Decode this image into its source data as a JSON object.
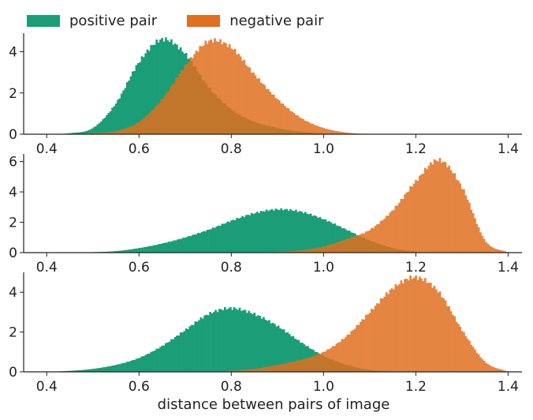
{
  "legend": {
    "items": [
      {
        "label": "positive pair",
        "color": "#1b9e77"
      },
      {
        "label": "negative pair",
        "color": "#e07020"
      }
    ]
  },
  "xlabel": "distance between pairs of image",
  "chart_data": [
    {
      "type": "histogram",
      "xlim": [
        0.35,
        1.43
      ],
      "ylim": [
        0,
        4.9
      ],
      "xticks": [
        0.4,
        0.6,
        0.8,
        1.0,
        1.2,
        1.4
      ],
      "xtick_labels": [
        "0.4",
        "0.6",
        "0.8",
        "1.0",
        "1.2",
        "1.4"
      ],
      "yticks": [
        0,
        2,
        4
      ],
      "ytick_labels": [
        "0",
        "2",
        "4"
      ],
      "series": [
        {
          "name": "positive pair",
          "color": "#1b9e77",
          "x": [
            0.4,
            0.45,
            0.5,
            0.55,
            0.6,
            0.65,
            0.7,
            0.75,
            0.8,
            0.85,
            0.9,
            0.95,
            1.0,
            1.05,
            1.1
          ],
          "y": [
            0.0,
            0.05,
            0.3,
            1.5,
            3.5,
            4.6,
            3.9,
            2.3,
            1.2,
            0.6,
            0.3,
            0.12,
            0.04,
            0.01,
            0.0
          ]
        },
        {
          "name": "negative pair",
          "color": "#e07020",
          "x": [
            0.45,
            0.5,
            0.55,
            0.6,
            0.65,
            0.7,
            0.75,
            0.8,
            0.85,
            0.9,
            0.95,
            1.0,
            1.05,
            1.1
          ],
          "y": [
            0.0,
            0.05,
            0.15,
            0.6,
            1.7,
            3.3,
            4.5,
            4.2,
            2.9,
            1.7,
            0.8,
            0.3,
            0.08,
            0.0
          ]
        }
      ]
    },
    {
      "type": "histogram",
      "xlim": [
        0.35,
        1.43
      ],
      "ylim": [
        0,
        6.5
      ],
      "xticks": [
        0.4,
        0.6,
        0.8,
        1.0,
        1.2,
        1.4
      ],
      "xtick_labels": [
        "0.4",
        "0.6",
        "0.8",
        "1.0",
        "1.2",
        "1.4"
      ],
      "yticks": [
        0,
        2,
        4,
        6
      ],
      "ytick_labels": [
        "0",
        "2",
        "4",
        "6"
      ],
      "series": [
        {
          "name": "positive pair",
          "color": "#1b9e77",
          "x": [
            0.45,
            0.5,
            0.55,
            0.6,
            0.65,
            0.7,
            0.75,
            0.8,
            0.85,
            0.9,
            0.95,
            1.0,
            1.05,
            1.1,
            1.15,
            1.2
          ],
          "y": [
            0.0,
            0.03,
            0.1,
            0.3,
            0.6,
            1.0,
            1.5,
            2.1,
            2.6,
            2.85,
            2.7,
            2.2,
            1.5,
            0.8,
            0.3,
            0.05
          ]
        },
        {
          "name": "negative pair",
          "color": "#e07020",
          "x": [
            0.85,
            0.9,
            0.95,
            1.0,
            1.05,
            1.1,
            1.15,
            1.2,
            1.25,
            1.3,
            1.35,
            1.4
          ],
          "y": [
            0.0,
            0.05,
            0.15,
            0.4,
            0.9,
            1.5,
            2.8,
            4.7,
            6.1,
            4.3,
            0.8,
            0.0
          ]
        }
      ]
    },
    {
      "type": "histogram",
      "xlim": [
        0.35,
        1.43
      ],
      "ylim": [
        0,
        5.0
      ],
      "xticks": [
        0.4,
        0.6,
        0.8,
        1.0,
        1.2,
        1.4
      ],
      "xtick_labels": [
        "0.4",
        "0.6",
        "0.8",
        "1.0",
        "1.2",
        "1.4"
      ],
      "yticks": [
        0,
        2,
        4
      ],
      "ytick_labels": [
        "0",
        "2",
        "4"
      ],
      "series": [
        {
          "name": "positive pair",
          "color": "#1b9e77",
          "x": [
            0.4,
            0.45,
            0.5,
            0.55,
            0.6,
            0.65,
            0.7,
            0.75,
            0.8,
            0.85,
            0.9,
            0.95,
            1.0,
            1.05,
            1.1,
            1.15
          ],
          "y": [
            0.0,
            0.05,
            0.15,
            0.35,
            0.7,
            1.3,
            2.1,
            2.9,
            3.2,
            2.9,
            2.3,
            1.5,
            0.8,
            0.35,
            0.1,
            0.02
          ]
        },
        {
          "name": "negative pair",
          "color": "#e07020",
          "x": [
            0.75,
            0.8,
            0.85,
            0.9,
            0.95,
            1.0,
            1.05,
            1.1,
            1.15,
            1.2,
            1.25,
            1.3,
            1.35,
            1.4
          ],
          "y": [
            0.0,
            0.05,
            0.15,
            0.35,
            0.6,
            1.0,
            1.8,
            3.0,
            4.2,
            4.75,
            4.0,
            2.1,
            0.5,
            0.0
          ]
        }
      ]
    }
  ]
}
